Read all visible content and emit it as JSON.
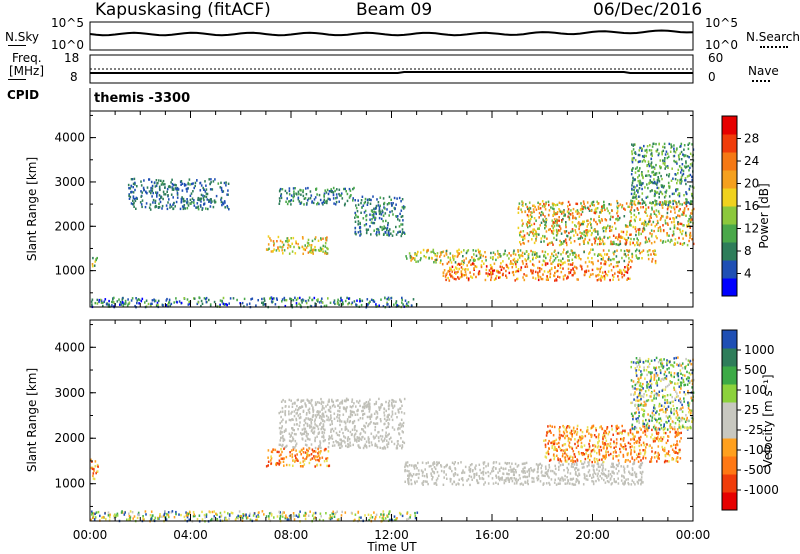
{
  "header": {
    "station": "Kapuskasing (fitACF)",
    "beam": "Beam 09",
    "date": "06/Dec/2016"
  },
  "panels": {
    "nsky": {
      "label": "N.Sky",
      "left_ticks": [
        "10^5",
        "10^0"
      ],
      "right_ticks": [
        "10^5",
        "10^0"
      ],
      "right_label": "N.Search"
    },
    "freq": {
      "label_top": "Freq.",
      "label_unit": "[MHz]",
      "left_ticks": [
        "18",
        "8"
      ],
      "right_ticks": [
        "60",
        "0"
      ],
      "right_label": "Nave"
    },
    "cpid": {
      "label": "CPID",
      "mode": "themis -3300"
    }
  },
  "colors": {
    "power_scale": [
      "#0000ff",
      "#1f4fb4",
      "#2e7d5a",
      "#4aa84a",
      "#8cc83c",
      "#f0d21e",
      "#f5a01e",
      "#f57814",
      "#f03c0a",
      "#e60000"
    ],
    "velocity_scale": [
      "#1f4fb4",
      "#2e7d5a",
      "#3caa46",
      "#8cd23c",
      "#c8c8c0",
      "#c8c8c0",
      "#ffa01e",
      "#ff7814",
      "#f03c0a",
      "#e60000"
    ],
    "ground_scatter": "#c0c0b8"
  },
  "chart_data": [
    {
      "type": "heatmap",
      "name": "power",
      "ylabel": "Slant Range [km]",
      "yticks": [
        1000,
        2000,
        3000,
        4000
      ],
      "ylim": [
        180,
        4600
      ],
      "xlim_hours": [
        0,
        24
      ],
      "colorbar": {
        "label": "Power [dB]",
        "ticks": [
          4,
          8,
          12,
          16,
          20,
          24,
          28
        ],
        "range": [
          0,
          32
        ]
      },
      "regions": [
        {
          "t": [
            0.0,
            0.3
          ],
          "r": [
            1100,
            1350
          ],
          "v": [
            6,
            20
          ]
        },
        {
          "t": [
            0.0,
            13.0
          ],
          "r": [
            200,
            420
          ],
          "v": [
            2,
            14
          ]
        },
        {
          "t": [
            1.5,
            5.5
          ],
          "r": [
            2400,
            3100
          ],
          "v": [
            4,
            10
          ]
        },
        {
          "t": [
            7.5,
            10.5
          ],
          "r": [
            2500,
            2900
          ],
          "v": [
            4,
            12
          ]
        },
        {
          "t": [
            10.5,
            12.5
          ],
          "r": [
            1800,
            2700
          ],
          "v": [
            4,
            12
          ]
        },
        {
          "t": [
            7.0,
            9.5
          ],
          "r": [
            1400,
            1800
          ],
          "v": [
            10,
            24
          ]
        },
        {
          "t": [
            12.5,
            22.5
          ],
          "r": [
            1200,
            1500
          ],
          "v": [
            8,
            24
          ]
        },
        {
          "t": [
            14.0,
            21.5
          ],
          "r": [
            800,
            1200
          ],
          "v": [
            16,
            30
          ]
        },
        {
          "t": [
            17.0,
            24.0
          ],
          "r": [
            1600,
            2600
          ],
          "v": [
            8,
            28
          ]
        },
        {
          "t": [
            21.5,
            24.0
          ],
          "r": [
            2500,
            3900
          ],
          "v": [
            4,
            16
          ]
        }
      ]
    },
    {
      "type": "heatmap",
      "name": "velocity",
      "ylabel": "Slant Range [km]",
      "xlabel": "Time UT",
      "xticks": [
        "00:00",
        "04:00",
        "08:00",
        "12:00",
        "16:00",
        "20:00",
        "00:00"
      ],
      "yticks": [
        1000,
        2000,
        3000,
        4000
      ],
      "ylim": [
        180,
        4600
      ],
      "xlim_hours": [
        0,
        24
      ],
      "colorbar": {
        "label": "Velocity [m s⁻¹]",
        "ticks": [
          "1000",
          "500",
          "100",
          "25",
          "-25",
          "-100",
          "-500",
          "-1000"
        ]
      },
      "regions": [
        {
          "t": [
            0.0,
            0.3
          ],
          "r": [
            1100,
            1600
          ],
          "kind": "neg",
          "v": -200
        },
        {
          "t": [
            0.0,
            13.0
          ],
          "r": [
            200,
            420
          ],
          "kind": "mix",
          "v": 0
        },
        {
          "t": [
            7.5,
            12.5
          ],
          "r": [
            1800,
            2900
          ],
          "kind": "ground",
          "v": 0
        },
        {
          "t": [
            12.5,
            22.0
          ],
          "r": [
            1000,
            1500
          ],
          "kind": "ground",
          "v": 0
        },
        {
          "t": [
            7.0,
            9.5
          ],
          "r": [
            1400,
            1800
          ],
          "kind": "neg",
          "v": -150
        },
        {
          "t": [
            18.0,
            23.5
          ],
          "r": [
            1500,
            2300
          ],
          "kind": "neg",
          "v": -200
        },
        {
          "t": [
            21.5,
            24.0
          ],
          "r": [
            2200,
            3800
          ],
          "kind": "mix",
          "v": 100
        }
      ]
    }
  ]
}
